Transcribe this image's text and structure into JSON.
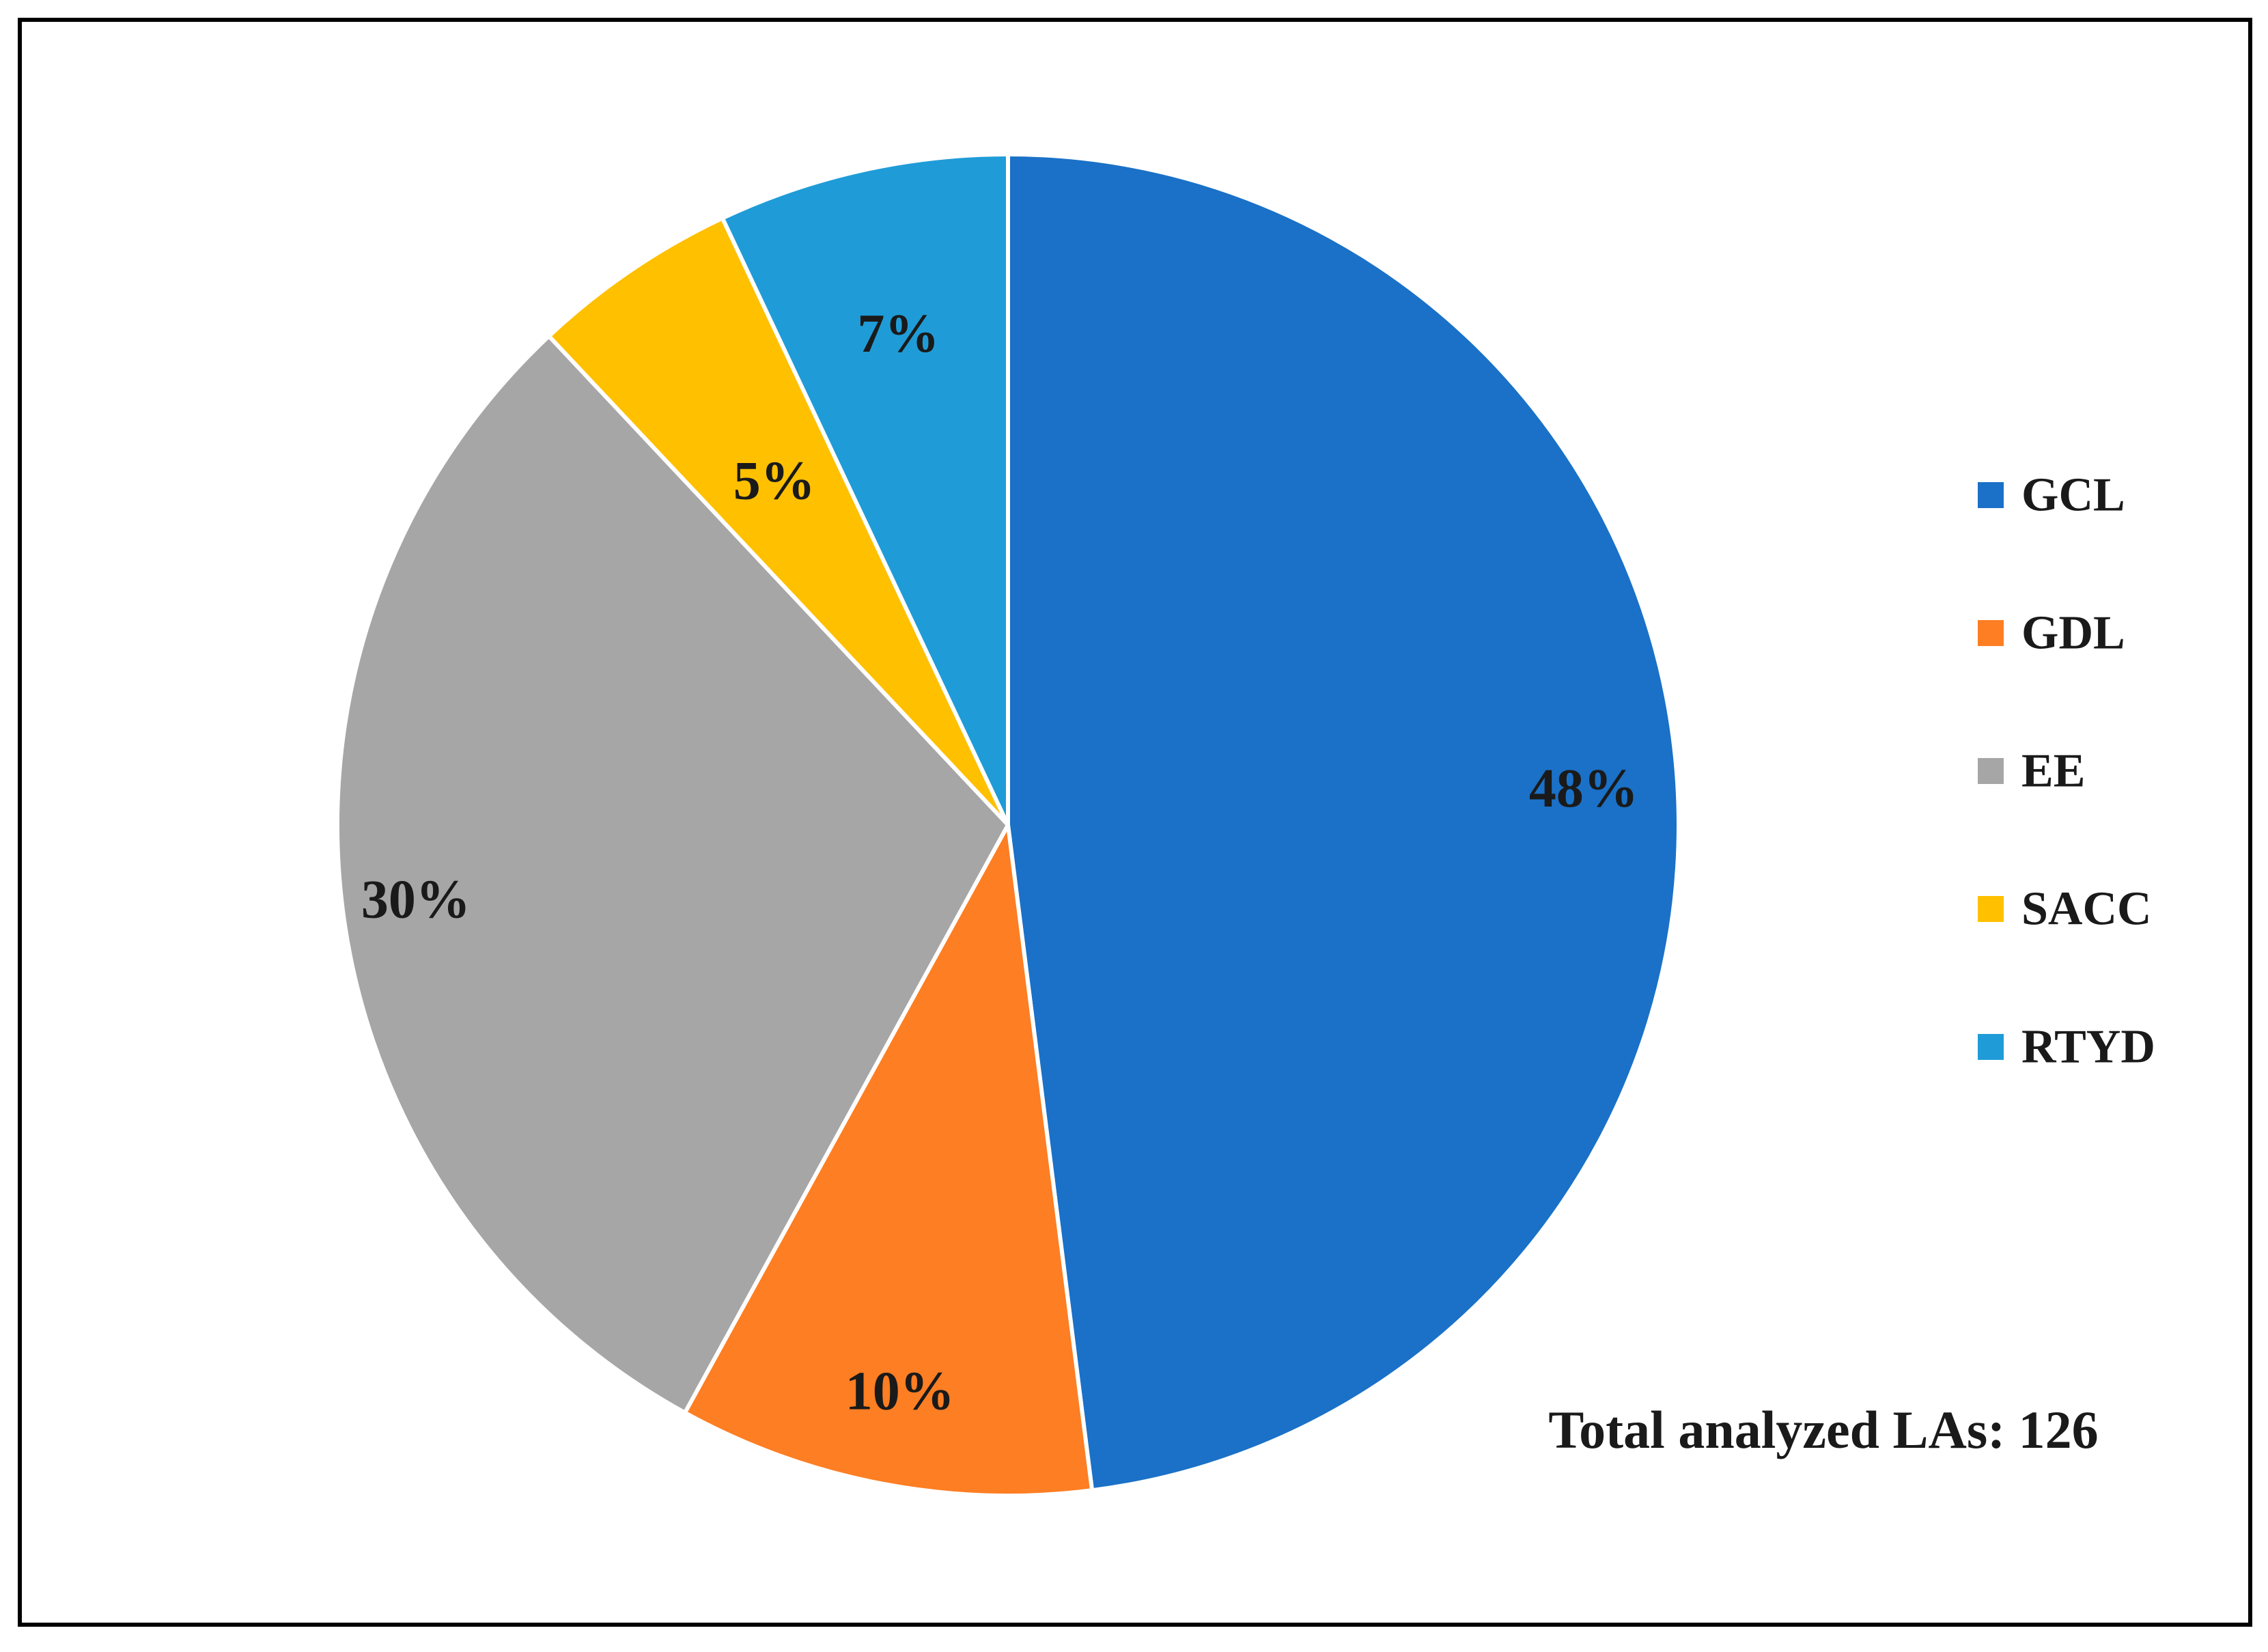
{
  "chart_data": {
    "type": "pie",
    "categories": [
      "GCL",
      "GDL",
      "EE",
      "SACC",
      "RTYD"
    ],
    "values": [
      48,
      10,
      30,
      5,
      7
    ],
    "value_labels": [
      "48%",
      "10%",
      "30%",
      "5%",
      "7%"
    ],
    "colors": [
      "#1A71C7",
      "#FD7E23",
      "#A6A6A6",
      "#FFC000",
      "#1F9CD8"
    ],
    "legend_position": "right",
    "start_angle_deg": 0,
    "direction": "clockwise",
    "annotation": "Total analyzed LAs: 126"
  }
}
